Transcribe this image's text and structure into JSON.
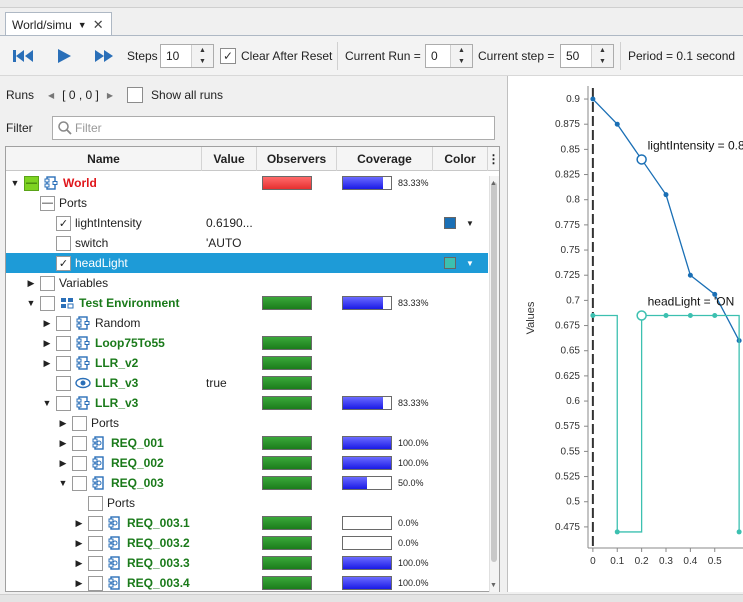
{
  "tab": {
    "title": "World/simu"
  },
  "toolbar": {
    "steps_label": "Steps",
    "steps_value": "10",
    "clear_after_reset": "Clear After Reset",
    "current_run_label": "Current Run =",
    "current_run_value": "0",
    "current_step_label": "Current step =",
    "current_step_value": "50",
    "period": "Period = 0.1 second"
  },
  "runs": {
    "label": "Runs",
    "range": "[ 0 , 0 ]",
    "show_all": "Show all runs"
  },
  "filter": {
    "label": "Filter",
    "placeholder": "Filter"
  },
  "columns": {
    "name": "Name",
    "value": "Value",
    "observers": "Observers",
    "coverage": "Coverage",
    "color": "Color"
  },
  "rows": [
    {
      "label": "World",
      "style": "red",
      "indent": 0,
      "arrow": "down",
      "cb": "green",
      "icon": "component",
      "value": "",
      "obs": "red",
      "cov": 83.33,
      "cov_text": "83.33%"
    },
    {
      "label": "Ports",
      "style": "normal",
      "indent": 1,
      "arrow": "",
      "cb": "minus",
      "icon": "",
      "value": "",
      "obs": "",
      "cov": null
    },
    {
      "label": "lightIntensity",
      "style": "normal",
      "indent": 2,
      "arrow": "",
      "cb": "check",
      "icon": "",
      "value": "0.6190...",
      "obs": "",
      "cov": null,
      "color": "#1a6fb5"
    },
    {
      "label": "switch",
      "style": "normal",
      "indent": 2,
      "arrow": "",
      "cb": "empty",
      "icon": "",
      "value": "'AUTO",
      "obs": "",
      "cov": null
    },
    {
      "label": "headLight",
      "style": "normal",
      "indent": 2,
      "arrow": "",
      "cb": "check",
      "icon": "",
      "value": "",
      "obs": "",
      "cov": null,
      "color": "#3cc0b0",
      "selected": true
    },
    {
      "label": "Variables",
      "style": "normal",
      "indent": 1,
      "arrow": "right",
      "cb": "empty",
      "icon": "",
      "value": "",
      "obs": "",
      "cov": null
    },
    {
      "label": "Test Environment",
      "style": "green",
      "indent": 1,
      "arrow": "down",
      "cb": "empty",
      "icon": "env",
      "value": "",
      "obs": "green",
      "cov": 83.33,
      "cov_text": "83.33%"
    },
    {
      "label": "Random",
      "style": "normal",
      "indent": 2,
      "arrow": "right",
      "cb": "empty",
      "icon": "component",
      "value": "",
      "obs": "",
      "cov": null
    },
    {
      "label": "Loop75To55",
      "style": "green",
      "indent": 2,
      "arrow": "right",
      "cb": "empty",
      "icon": "component",
      "value": "",
      "obs": "green",
      "cov": null
    },
    {
      "label": "LLR_v2",
      "style": "green",
      "indent": 2,
      "arrow": "right",
      "cb": "empty",
      "icon": "component",
      "value": "",
      "obs": "green",
      "cov": null
    },
    {
      "label": "LLR_v3",
      "style": "green",
      "indent": 2,
      "arrow": "",
      "cb": "empty",
      "icon": "eye",
      "value": "true",
      "obs": "green",
      "cov": null
    },
    {
      "label": "LLR_v3",
      "style": "green",
      "indent": 2,
      "arrow": "down",
      "cb": "empty",
      "icon": "component",
      "value": "",
      "obs": "green",
      "cov": 83.33,
      "cov_text": "83.33%"
    },
    {
      "label": "Ports",
      "style": "normal",
      "indent": 3,
      "arrow": "right",
      "cb": "empty",
      "icon": "",
      "value": "",
      "obs": "",
      "cov": null
    },
    {
      "label": "REQ_001",
      "style": "green",
      "indent": 3,
      "arrow": "right",
      "cb": "empty",
      "icon": "req",
      "value": "",
      "obs": "green",
      "cov": 100,
      "cov_text": "100.0%"
    },
    {
      "label": "REQ_002",
      "style": "green",
      "indent": 3,
      "arrow": "right",
      "cb": "empty",
      "icon": "req",
      "value": "",
      "obs": "green",
      "cov": 100,
      "cov_text": "100.0%"
    },
    {
      "label": "REQ_003",
      "style": "green",
      "indent": 3,
      "arrow": "down",
      "cb": "empty",
      "icon": "req",
      "value": "",
      "obs": "green",
      "cov": 50,
      "cov_text": "50.0%"
    },
    {
      "label": "Ports",
      "style": "normal",
      "indent": 4,
      "arrow": "",
      "cb": "empty",
      "icon": "",
      "value": "",
      "obs": "",
      "cov": null
    },
    {
      "label": "REQ_003.1",
      "style": "green",
      "indent": 4,
      "arrow": "right",
      "cb": "empty",
      "icon": "req",
      "value": "",
      "obs": "green",
      "cov": 0,
      "cov_text": "0.0%"
    },
    {
      "label": "REQ_003.2",
      "style": "green",
      "indent": 4,
      "arrow": "right",
      "cb": "empty",
      "icon": "req",
      "value": "",
      "obs": "green",
      "cov": 0,
      "cov_text": "0.0%"
    },
    {
      "label": "REQ_003.3",
      "style": "green",
      "indent": 4,
      "arrow": "right",
      "cb": "empty",
      "icon": "req",
      "value": "",
      "obs": "green",
      "cov": 100,
      "cov_text": "100.0%"
    },
    {
      "label": "REQ_003.4",
      "style": "green",
      "indent": 4,
      "arrow": "right",
      "cb": "empty",
      "icon": "req",
      "value": "",
      "obs": "green",
      "cov": 100,
      "cov_text": "100.0%"
    }
  ],
  "colors": {
    "red_text": "#e0161b",
    "green_text": "#1a7a1a",
    "selection": "#1e9bd7",
    "series_light": "#1a6fb5",
    "series_head": "#3cc0b0"
  },
  "chart_data": {
    "type": "line",
    "ylabel": "Values",
    "ylim": [
      0.46,
      0.905
    ],
    "xlim": [
      -0.02,
      0.62
    ],
    "yticks": [
      "0.9",
      "0.875",
      "0.85",
      "0.825",
      "0.8",
      "0.775",
      "0.75",
      "0.725",
      "0.7",
      "0.675",
      "0.65",
      "0.625",
      "0.6",
      "0.575",
      "0.55",
      "0.525",
      "0.5",
      "0.475"
    ],
    "xticks": [
      "0",
      "0.1",
      "0.2",
      "0.3",
      "0.4",
      "0.5"
    ],
    "series": [
      {
        "name": "lightIntensity",
        "color": "#1a6fb5",
        "x": [
          0,
          0.1,
          0.2,
          0.3,
          0.4,
          0.5,
          0.6
        ],
        "y": [
          0.9,
          0.875,
          0.84,
          0.805,
          0.725,
          0.706,
          0.66
        ]
      },
      {
        "name": "headLight",
        "color": "#3cc0b0",
        "step": true,
        "x": [
          0,
          0.1,
          0.2,
          0.3,
          0.4,
          0.5,
          0.6
        ],
        "y": [
          0.685,
          0.47,
          0.685,
          0.685,
          0.685,
          0.685,
          0.47
        ]
      }
    ],
    "annotations": [
      {
        "text": "lightIntensity = 0.8",
        "x": 0.2,
        "y": 0.84
      },
      {
        "text": "headLight = 'ON",
        "x": 0.2,
        "y": 0.685
      }
    ]
  }
}
